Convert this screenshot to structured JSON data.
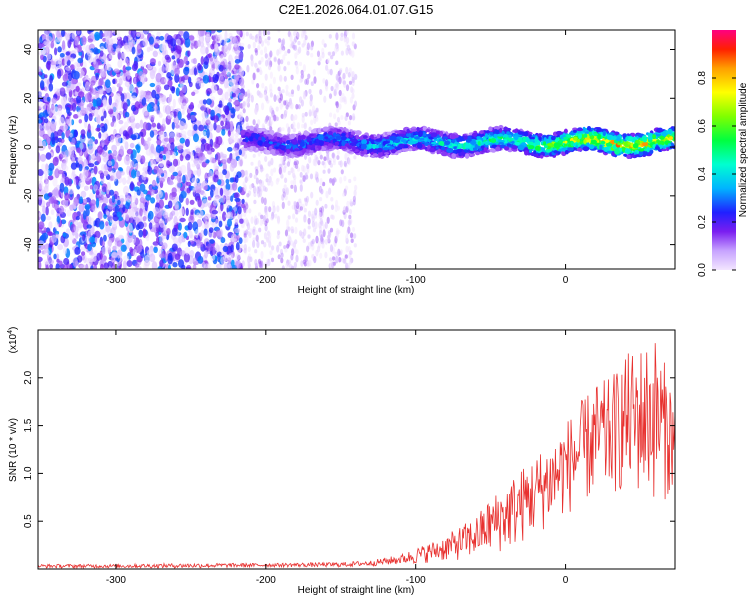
{
  "title": "C2E1.2026.064.01.07.G15",
  "chart_data": [
    {
      "type": "heatmap",
      "xlabel": "Height of straight line (km)",
      "ylabel": "Frequency (Hz)",
      "xlim": [
        -352,
        73
      ],
      "ylim": [
        -50,
        48
      ],
      "xticks": [
        -300,
        -200,
        -100,
        0
      ],
      "yticks": [
        -40,
        -20,
        0,
        20,
        40
      ],
      "colorbar": {
        "label": "Normalized spectral amplitude",
        "range": [
          0.0,
          1.0
        ],
        "ticks": [
          "0.0",
          "0.2",
          "0.4",
          "0.6",
          "0.8"
        ],
        "tick_values": [
          0.0,
          0.2,
          0.4,
          0.6,
          0.8
        ]
      },
      "regions": [
        {
          "x": [
            -352,
            -215
          ],
          "description_key": "broadband_noise",
          "freq_range": [
            -50,
            48
          ],
          "amplitude_range": [
            0.0,
            0.3
          ]
        },
        {
          "x": [
            -215,
            -140
          ],
          "freq_range": [
            -50,
            48
          ],
          "amplitude_range": [
            0.0,
            0.15
          ]
        },
        {
          "x": [
            -215,
            73
          ],
          "freq_center": 2,
          "freq_halfwidth": 4,
          "amplitude_range": [
            0.2,
            1.0
          ]
        }
      ],
      "signal_band": {
        "x": [
          -215,
          -180,
          -140,
          -120,
          -100,
          -80,
          -60,
          -40,
          -30,
          -20,
          0,
          20,
          40,
          60,
          73
        ],
        "amplitude": [
          0.3,
          0.35,
          0.4,
          0.45,
          0.5,
          0.5,
          0.55,
          0.6,
          0.6,
          0.7,
          0.8,
          0.95,
          0.95,
          0.85,
          0.8
        ]
      }
    },
    {
      "type": "line",
      "xlabel": "Height of straight line (km)",
      "ylabel": "SNR (10 * v/v)",
      "multiplier": "(x10",
      "multiplier_exp": "4",
      "multiplier_close": ")",
      "xlim": [
        -352,
        73
      ],
      "ylim": [
        0,
        2.5
      ],
      "xticks": [
        -300,
        -200,
        -100,
        0
      ],
      "yticks": [
        0.5,
        1.0,
        1.5,
        2.0
      ],
      "ytick_labels": [
        "0.5",
        "1.0",
        "1.5",
        "2.0"
      ],
      "series": [
        {
          "color": "#e8312f",
          "x": [
            -352,
            -300,
            -250,
            -200,
            -150,
            -130,
            -110,
            -100,
            -90,
            -80,
            -70,
            -60,
            -50,
            -40,
            -30,
            -20,
            -10,
            0,
            10,
            20,
            30,
            40,
            50,
            60,
            73
          ],
          "y_low": [
            0.01,
            0.01,
            0.01,
            0.02,
            0.02,
            0.03,
            0.05,
            0.05,
            0.07,
            0.08,
            0.09,
            0.12,
            0.15,
            0.18,
            0.25,
            0.35,
            0.45,
            0.55,
            0.65,
            0.72,
            0.75,
            0.8,
            0.75,
            0.7,
            0.75
          ],
          "y_high": [
            0.05,
            0.05,
            0.06,
            0.06,
            0.07,
            0.09,
            0.15,
            0.22,
            0.28,
            0.35,
            0.45,
            0.55,
            0.75,
            0.9,
            1.05,
            1.2,
            1.35,
            1.55,
            1.75,
            1.95,
            2.0,
            2.25,
            2.35,
            2.45,
            1.85
          ]
        }
      ]
    }
  ]
}
